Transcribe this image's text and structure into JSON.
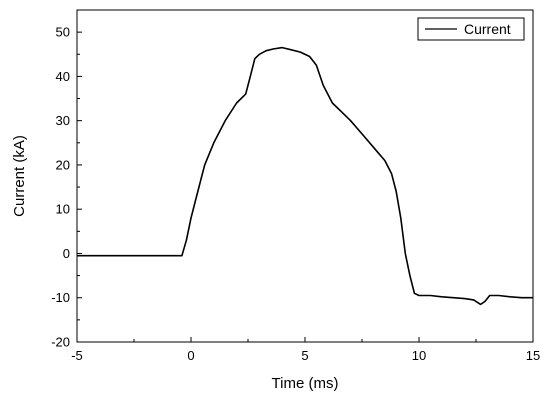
{
  "chart_data": {
    "type": "line",
    "xlabel": "Time (ms)",
    "ylabel": "Current (kA)",
    "xlim": [
      -5,
      15
    ],
    "ylim": [
      -20,
      55
    ],
    "xticks": [
      -5,
      0,
      5,
      10,
      15
    ],
    "yticks": [
      -20,
      -10,
      0,
      10,
      20,
      30,
      40,
      50
    ],
    "grid": false,
    "legend_position": "top-right",
    "series": [
      {
        "name": "Current",
        "color": "#000000",
        "x": [
          -5,
          -4,
          -3,
          -2,
          -1,
          -0.5,
          -0.4,
          -0.2,
          0,
          0.3,
          0.6,
          1,
          1.5,
          2,
          2.4,
          2.6,
          2.8,
          3,
          3.3,
          3.6,
          4,
          4.4,
          4.8,
          5.2,
          5.5,
          5.8,
          6.2,
          6.6,
          7,
          7.5,
          8,
          8.5,
          8.8,
          9,
          9.2,
          9.4,
          9.6,
          9.8,
          10,
          10.5,
          11,
          11.5,
          12,
          12.4,
          12.7,
          12.9,
          13.1,
          13.5,
          14,
          14.5,
          15
        ],
        "y": [
          -0.5,
          -0.5,
          -0.5,
          -0.5,
          -0.5,
          -0.5,
          -0.5,
          3,
          8,
          14,
          20,
          25,
          30,
          34,
          36,
          40,
          44,
          45,
          45.8,
          46.2,
          46.5,
          46,
          45.5,
          44.5,
          42.5,
          38,
          34,
          32,
          30,
          27,
          24,
          21,
          18,
          14,
          8,
          0,
          -5,
          -9,
          -9.5,
          -9.5,
          -9.8,
          -10,
          -10.2,
          -10.5,
          -11.5,
          -10.8,
          -9.5,
          -9.5,
          -9.8,
          -10,
          -10
        ]
      }
    ]
  }
}
